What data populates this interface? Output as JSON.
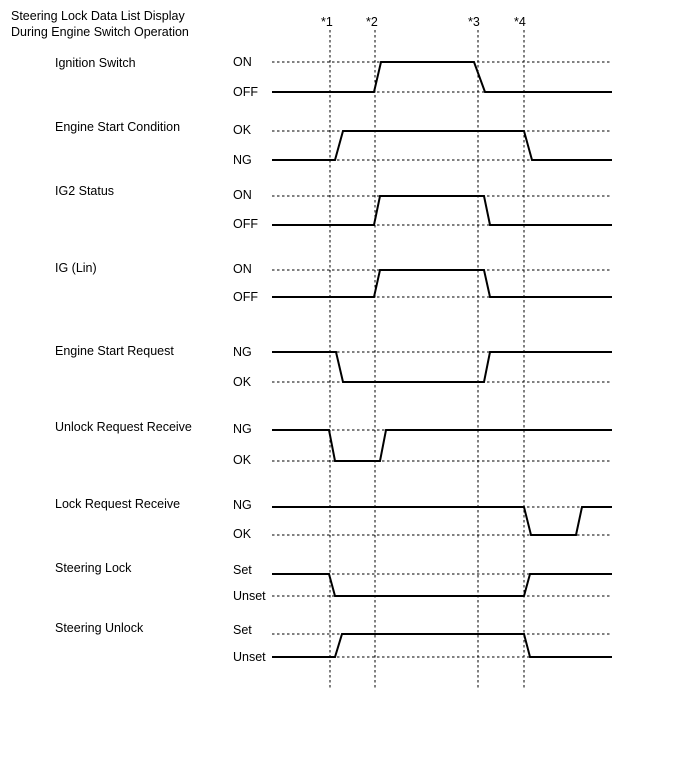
{
  "title": {
    "line1": "Steering Lock Data List Display",
    "line2": "During Engine Switch Operation"
  },
  "markers": [
    "*1",
    "*2",
    "*3",
    "*4"
  ],
  "signals": [
    {
      "name": "Ignition Switch",
      "high_label": "ON",
      "low_label": "OFF",
      "segments": [
        {
          "level": "low",
          "until": "*2"
        },
        {
          "level": "high",
          "until": "*3"
        },
        {
          "level": "low",
          "until": "end"
        }
      ]
    },
    {
      "name": "Engine Start Condition",
      "high_label": "OK",
      "low_label": "NG",
      "segments": [
        {
          "level": "low",
          "until": "*1"
        },
        {
          "level": "high",
          "until": "*4"
        },
        {
          "level": "low",
          "until": "end"
        }
      ]
    },
    {
      "name": "IG2 Status",
      "high_label": "ON",
      "low_label": "OFF",
      "segments": [
        {
          "level": "low",
          "until": "*2"
        },
        {
          "level": "high",
          "until": "*3"
        },
        {
          "level": "low",
          "until": "end"
        }
      ]
    },
    {
      "name": "IG (Lin)",
      "high_label": "ON",
      "low_label": "OFF",
      "segments": [
        {
          "level": "low",
          "until": "*2"
        },
        {
          "level": "high",
          "until": "*3"
        },
        {
          "level": "low",
          "until": "end"
        }
      ]
    },
    {
      "name": "Engine Start Request",
      "high_label": "NG",
      "low_label": "OK",
      "segments": [
        {
          "level": "high",
          "until": "*1"
        },
        {
          "level": "low",
          "until": "*3"
        },
        {
          "level": "high",
          "until": "end"
        }
      ]
    },
    {
      "name": "Unlock Request Receive",
      "high_label": "NG",
      "low_label": "OK",
      "segments": [
        {
          "level": "high",
          "until": "*1"
        },
        {
          "level": "low",
          "until": "*2"
        },
        {
          "level": "high",
          "until": "end"
        }
      ]
    },
    {
      "name": "Lock Request Receive",
      "high_label": "NG",
      "low_label": "OK",
      "segments": [
        {
          "level": "high",
          "until": "*4"
        },
        {
          "level": "low",
          "until": "after *4"
        },
        {
          "level": "high",
          "until": "end"
        }
      ]
    },
    {
      "name": "Steering Lock",
      "high_label": "Set",
      "low_label": "Unset",
      "segments": [
        {
          "level": "high",
          "until": "*1"
        },
        {
          "level": "low",
          "until": "*4"
        },
        {
          "level": "high",
          "until": "end"
        }
      ]
    },
    {
      "name": "Steering Unlock",
      "high_label": "Set",
      "low_label": "Unset",
      "segments": [
        {
          "level": "low",
          "until": "*1"
        },
        {
          "level": "high",
          "until": "*4"
        },
        {
          "level": "low",
          "until": "end"
        }
      ]
    }
  ]
}
